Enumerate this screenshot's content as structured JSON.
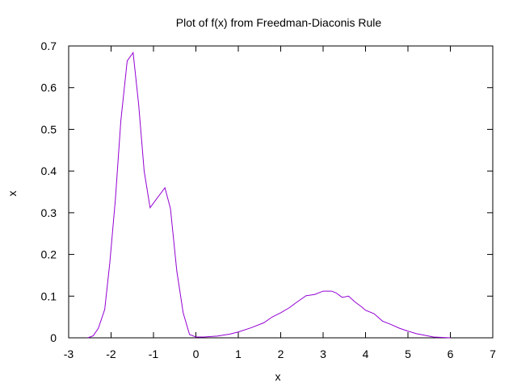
{
  "chart_data": {
    "type": "line",
    "title": "Plot of f(x) from Freedman-Diaconis Rule",
    "xlabel": "x",
    "ylabel": "x",
    "xlim": [
      -3,
      7
    ],
    "ylim": [
      0,
      0.7
    ],
    "x_ticks": [
      "-3",
      "-2",
      "-1",
      "0",
      "1",
      "2",
      "3",
      "4",
      "5",
      "6",
      "7"
    ],
    "y_ticks": [
      "0",
      "0.1",
      "0.2",
      "0.3",
      "0.4",
      "0.5",
      "0.6",
      "0.7"
    ],
    "grid": false,
    "legend": "none",
    "line_color": "#9400d3",
    "series": [
      {
        "points": [
          [
            -2.55,
            0.0
          ],
          [
            -2.42,
            0.005
          ],
          [
            -2.3,
            0.023
          ],
          [
            -2.15,
            0.068
          ],
          [
            -2.03,
            0.18
          ],
          [
            -1.9,
            0.33
          ],
          [
            -1.77,
            0.52
          ],
          [
            -1.62,
            0.664
          ],
          [
            -1.48,
            0.684
          ],
          [
            -1.35,
            0.56
          ],
          [
            -1.22,
            0.4
          ],
          [
            -1.08,
            0.312
          ],
          [
            -0.95,
            0.33
          ],
          [
            -0.73,
            0.36
          ],
          [
            -0.6,
            0.31
          ],
          [
            -0.45,
            0.16
          ],
          [
            -0.3,
            0.06
          ],
          [
            -0.15,
            0.008
          ],
          [
            0.0,
            0.002
          ],
          [
            0.2,
            0.002
          ],
          [
            0.5,
            0.004
          ],
          [
            0.8,
            0.009
          ],
          [
            1.0,
            0.014
          ],
          [
            1.3,
            0.024
          ],
          [
            1.6,
            0.036
          ],
          [
            1.8,
            0.05
          ],
          [
            2.0,
            0.06
          ],
          [
            2.2,
            0.072
          ],
          [
            2.4,
            0.087
          ],
          [
            2.6,
            0.101
          ],
          [
            2.8,
            0.104
          ],
          [
            3.0,
            0.112
          ],
          [
            3.2,
            0.112
          ],
          [
            3.3,
            0.108
          ],
          [
            3.45,
            0.097
          ],
          [
            3.6,
            0.1
          ],
          [
            3.75,
            0.086
          ],
          [
            3.9,
            0.075
          ],
          [
            4.0,
            0.066
          ],
          [
            4.2,
            0.058
          ],
          [
            4.4,
            0.04
          ],
          [
            4.6,
            0.032
          ],
          [
            4.8,
            0.023
          ],
          [
            5.0,
            0.016
          ],
          [
            5.2,
            0.01
          ],
          [
            5.4,
            0.006
          ],
          [
            5.6,
            0.002
          ],
          [
            5.8,
            0.001
          ],
          [
            6.0,
            0.0
          ]
        ]
      }
    ]
  }
}
